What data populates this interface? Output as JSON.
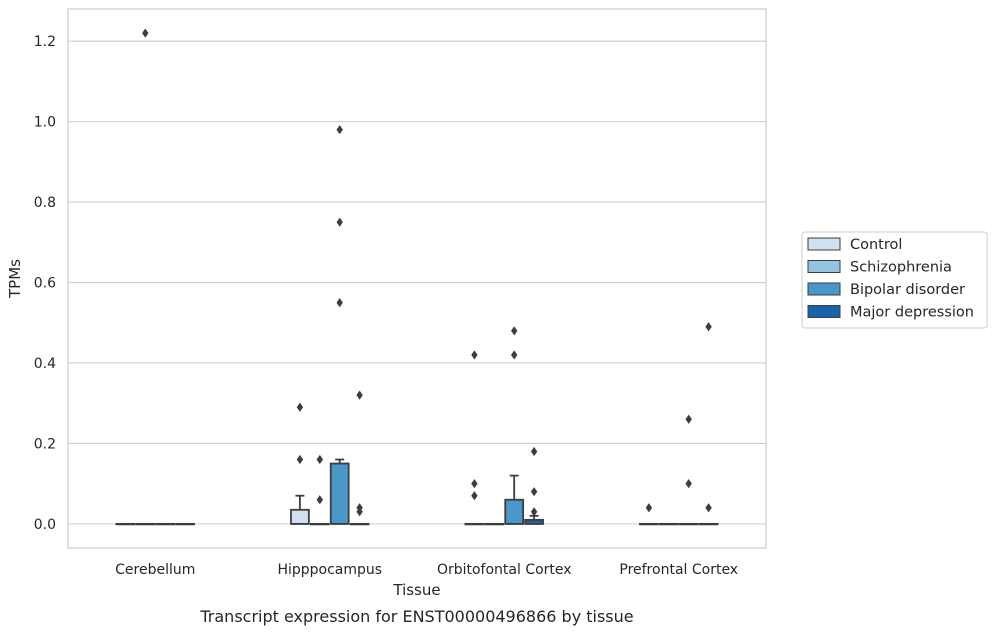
{
  "chart_data": {
    "type": "box",
    "caption": "Transcript expression for ENST00000496866 by tissue",
    "xlabel": "Tissue",
    "ylabel": "TPMs",
    "ylim": [
      -0.06,
      1.28
    ],
    "yticks": [
      0.0,
      0.2,
      0.4,
      0.6,
      0.8,
      1.0,
      1.2
    ],
    "ytick_labels": [
      "0.0",
      "0.2",
      "0.4",
      "0.6",
      "0.8",
      "1.0",
      "1.2"
    ],
    "grid": true,
    "legend_position": "right",
    "categories": [
      "Cerebellum",
      "Hipppocampus",
      "Orbitofontal Cortex",
      "Prefrontal Cortex"
    ],
    "series": [
      {
        "name": "Control",
        "color": "#d0e1f2",
        "boxes": [
          {
            "q1": 0,
            "median": 0,
            "q3": 0,
            "whisker_low": 0,
            "whisker_high": 0,
            "outliers": []
          },
          {
            "q1": 0,
            "median": 0,
            "q3": 0.035,
            "whisker_low": 0,
            "whisker_high": 0.07,
            "outliers": [
              0.16,
              0.29
            ]
          },
          {
            "q1": 0,
            "median": 0,
            "q3": 0,
            "whisker_low": 0,
            "whisker_high": 0,
            "outliers": [
              0.07,
              0.1,
              0.42
            ]
          },
          {
            "q1": 0,
            "median": 0,
            "q3": 0,
            "whisker_low": 0,
            "whisker_high": 0,
            "outliers": [
              0.04
            ]
          }
        ]
      },
      {
        "name": "Schizophrenia",
        "color": "#94c4df",
        "boxes": [
          {
            "q1": 0,
            "median": 0,
            "q3": 0,
            "whisker_low": 0,
            "whisker_high": 0,
            "outliers": [
              1.22
            ]
          },
          {
            "q1": 0,
            "median": 0,
            "q3": 0,
            "whisker_low": 0,
            "whisker_high": 0,
            "outliers": [
              0.06,
              0.16
            ]
          },
          {
            "q1": 0,
            "median": 0,
            "q3": 0,
            "whisker_low": 0,
            "whisker_high": 0,
            "outliers": []
          },
          {
            "q1": 0,
            "median": 0,
            "q3": 0,
            "whisker_low": 0,
            "whisker_high": 0,
            "outliers": []
          }
        ]
      },
      {
        "name": "Bipolar disorder",
        "color": "#4a98c9",
        "boxes": [
          {
            "q1": 0,
            "median": 0,
            "q3": 0,
            "whisker_low": 0,
            "whisker_high": 0,
            "outliers": []
          },
          {
            "q1": 0,
            "median": 0,
            "q3": 0.15,
            "whisker_low": 0,
            "whisker_high": 0.16,
            "outliers": [
              0.55,
              0.75,
              0.98
            ]
          },
          {
            "q1": 0,
            "median": 0,
            "q3": 0.06,
            "whisker_low": 0,
            "whisker_high": 0.12,
            "outliers": [
              0.42,
              0.48
            ]
          },
          {
            "q1": 0,
            "median": 0,
            "q3": 0,
            "whisker_low": 0,
            "whisker_high": 0,
            "outliers": [
              0.1,
              0.26
            ]
          }
        ]
      },
      {
        "name": "Major depression",
        "color": "#1764ab",
        "boxes": [
          {
            "q1": 0,
            "median": 0,
            "q3": 0,
            "whisker_low": 0,
            "whisker_high": 0,
            "outliers": []
          },
          {
            "q1": 0,
            "median": 0,
            "q3": 0,
            "whisker_low": 0,
            "whisker_high": 0,
            "outliers": [
              0.03,
              0.04,
              0.32
            ]
          },
          {
            "q1": 0,
            "median": 0,
            "q3": 0.01,
            "whisker_low": 0,
            "whisker_high": 0.02,
            "outliers": [
              0.03,
              0.08,
              0.18
            ]
          },
          {
            "q1": 0,
            "median": 0,
            "q3": 0,
            "whisker_low": 0,
            "whisker_high": 0,
            "outliers": [
              0.04,
              0.49
            ]
          }
        ]
      }
    ]
  }
}
